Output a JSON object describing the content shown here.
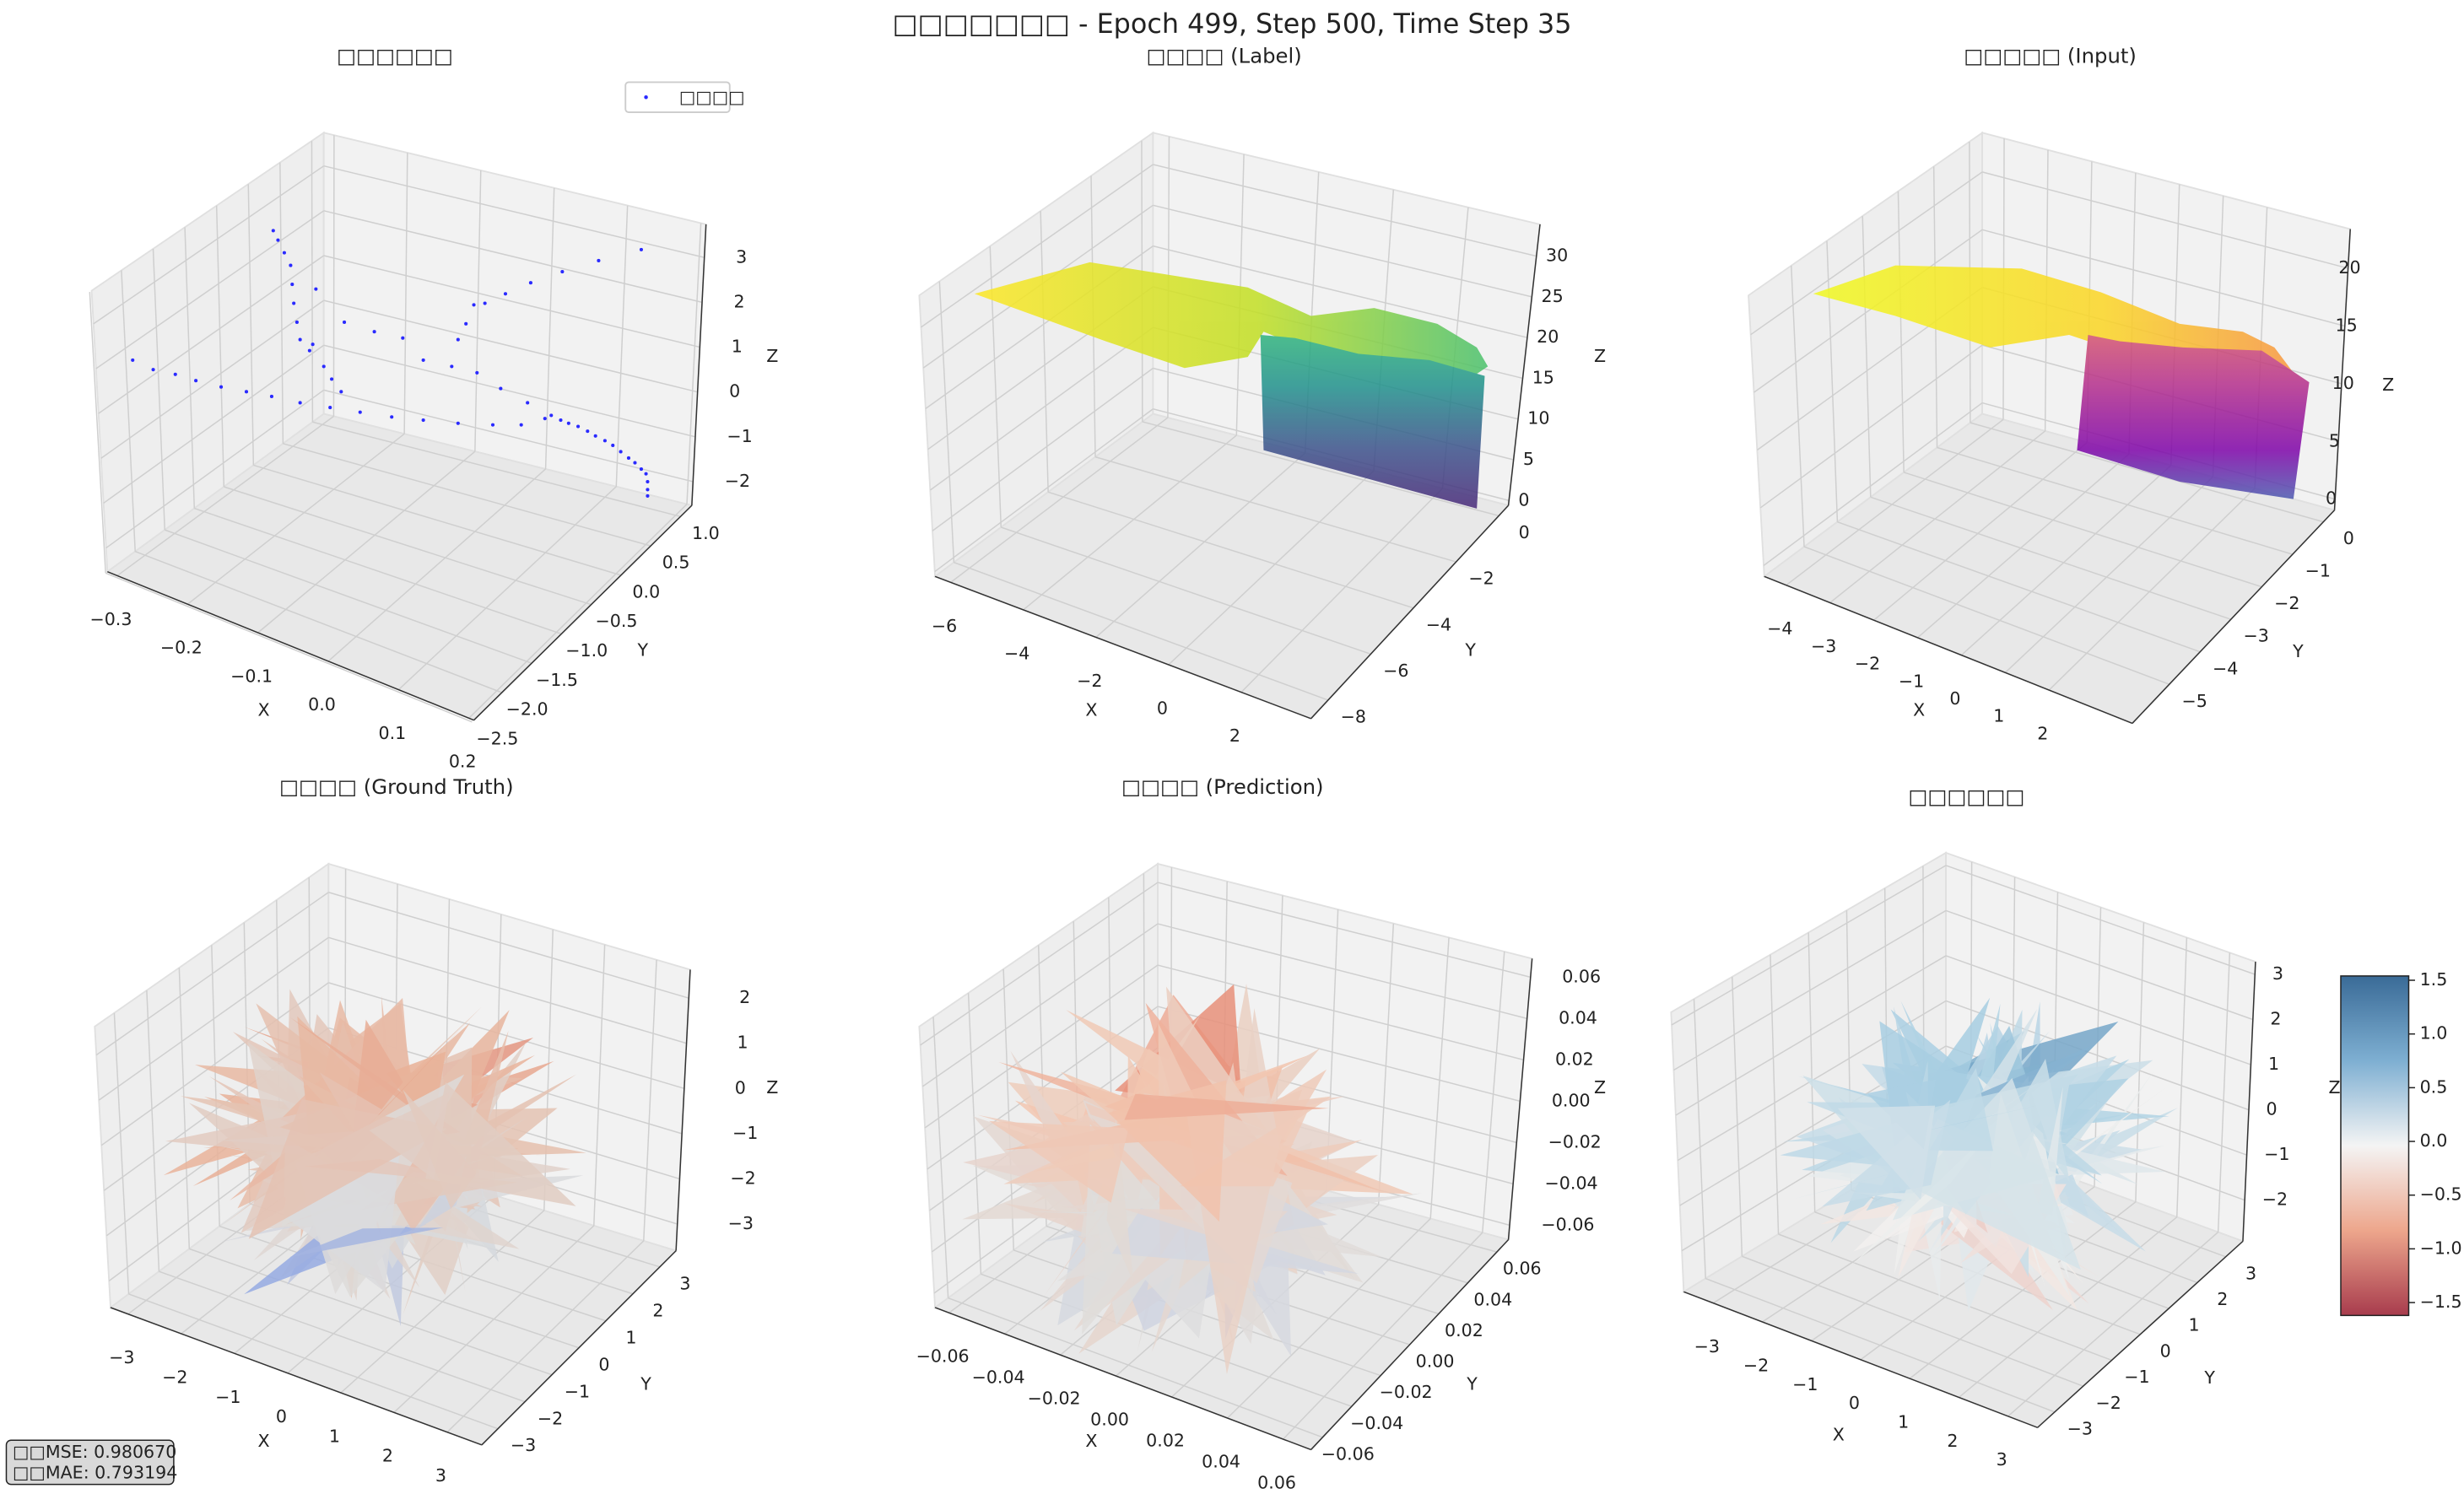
{
  "figure_title": "□□□□□□□ - Epoch 499, Step 500, Time Step 35",
  "metrics": [
    "□□MSE: 0.980670",
    "□□MAE: 0.793194"
  ],
  "chart_data": [
    {
      "type": "scatter3d",
      "title": "□□□□□□",
      "legend": "□□□□",
      "color": "#0000ff",
      "xlabel": "X",
      "ylabel": "Y",
      "zlabel": "Z",
      "xlim": [
        -0.314,
        0.207
      ],
      "ylim": [
        -2.47,
        1.19
      ],
      "zlim": [
        -2.53,
        3.74
      ],
      "xticks": [
        {
          "value": -0.3,
          "label": "−0.3"
        },
        {
          "value": -0.2,
          "label": "−0.2"
        },
        {
          "value": -0.1,
          "label": "−0.1"
        },
        {
          "value": 0,
          "label": "0.0"
        },
        0.1,
        0.2
      ],
      "yticks": [
        {
          "value": -2.5,
          "label": "−2.5"
        },
        {
          "value": -2,
          "label": "−2.0"
        },
        {
          "value": -1.5,
          "label": "−1.5"
        },
        {
          "value": -1,
          "label": "−1.0"
        },
        {
          "value": -0.5,
          "label": "−0.5"
        },
        {
          "value": 0,
          "label": "0.0"
        },
        0.5,
        {
          "value": 1,
          "label": "1.0"
        }
      ],
      "zticks": [
        {
          "value": -2,
          "label": "−2"
        },
        {
          "value": -1,
          "label": "−1"
        },
        0,
        1,
        2,
        3
      ]
    },
    {
      "type": "surface",
      "title": "□□□□ (Label)",
      "colormap": "viridis",
      "xlabel": "X",
      "ylabel": "Y",
      "zlabel": "Z",
      "xlim": [
        -6.43,
        3.92
      ],
      "ylim": [
        -8.8,
        0.45
      ],
      "zlim": [
        -0.6,
        33.9
      ],
      "xticks": [
        {
          "value": -6,
          "label": "−6"
        },
        {
          "value": -4,
          "label": "−4"
        },
        {
          "value": -2,
          "label": "−2"
        },
        0,
        2
      ],
      "yticks": [
        {
          "value": -8,
          "label": "−8"
        },
        {
          "value": -6,
          "label": "−6"
        },
        {
          "value": -4,
          "label": "−4"
        },
        {
          "value": -2,
          "label": "−2"
        },
        0
      ],
      "zticks": [
        0,
        5,
        10,
        15,
        20,
        25,
        30
      ]
    },
    {
      "type": "surface",
      "title": "□□□□□ (Input)",
      "colormap": "plasma",
      "xlabel": "X",
      "ylabel": "Y",
      "zlabel": "Z",
      "xlim": [
        -4.5,
        3.9
      ],
      "ylim": [
        -6.2,
        0.36
      ],
      "zlim": [
        -0.95,
        23.4
      ],
      "xticks": [
        {
          "value": -4,
          "label": "−4"
        },
        {
          "value": -3,
          "label": "−3"
        },
        {
          "value": -2,
          "label": "−2"
        },
        {
          "value": -1,
          "label": "−1"
        },
        0,
        1,
        2
      ],
      "yticks": [
        {
          "value": -5,
          "label": "−5"
        },
        {
          "value": -4,
          "label": "−4"
        },
        {
          "value": -3,
          "label": "−3"
        },
        {
          "value": -2,
          "label": "−2"
        },
        {
          "value": -1,
          "label": "−1"
        },
        0
      ],
      "zticks": [
        0,
        5,
        10,
        15,
        20
      ]
    },
    {
      "type": "trisurf",
      "title": "□□□□ (Ground Truth)",
      "colormap": "coolwarm",
      "xlabel": "X",
      "ylabel": "Y",
      "zlabel": "Z",
      "xlim": [
        -3.33,
        3.65
      ],
      "ylim": [
        -3.6,
        3.6
      ],
      "zlim": [
        -3.59,
        2.63
      ],
      "xticks": [
        {
          "value": -3,
          "label": "−3"
        },
        {
          "value": -2,
          "label": "−2"
        },
        {
          "value": -1,
          "label": "−1"
        },
        0,
        1,
        2,
        3
      ],
      "yticks": [
        {
          "value": -3,
          "label": "−3"
        },
        {
          "value": -2,
          "label": "−2"
        },
        {
          "value": -1,
          "label": "−1"
        },
        0,
        1,
        2,
        3
      ],
      "zticks": [
        {
          "value": -3,
          "label": "−3"
        },
        {
          "value": -2,
          "label": "−2"
        },
        {
          "value": -1,
          "label": "−1"
        },
        0,
        1,
        2
      ]
    },
    {
      "type": "trisurf",
      "title": "□□□□ (Prediction)",
      "colormap": "coolwarm",
      "xlabel": "X",
      "ylabel": "Y",
      "zlabel": "Z",
      "xlim": [
        -0.065,
        0.07
      ],
      "ylim": [
        -0.068,
        0.068
      ],
      "zlim": [
        -0.067,
        0.069
      ],
      "xticks": [
        {
          "value": -0.06,
          "label": "−0.06"
        },
        {
          "value": -0.04,
          "label": "−0.04"
        },
        {
          "value": -0.02,
          "label": "−0.02"
        },
        {
          "value": 0,
          "label": "0.00"
        },
        0.02,
        0.04,
        0.06
      ],
      "yticks": [
        {
          "value": -0.06,
          "label": "−0.06"
        },
        {
          "value": -0.04,
          "label": "−0.04"
        },
        {
          "value": -0.02,
          "label": "−0.02"
        },
        {
          "value": 0,
          "label": "0.00"
        },
        0.02,
        0.04,
        0.06
      ],
      "zticks": [
        {
          "value": -0.06,
          "label": "−0.06"
        },
        {
          "value": -0.04,
          "label": "−0.04"
        },
        {
          "value": -0.02,
          "label": "−0.02"
        },
        {
          "value": 0,
          "label": "0.00"
        },
        0.02,
        0.04,
        0.06
      ]
    },
    {
      "type": "trisurf",
      "title": "□□□□□□",
      "colormap": "RdBu",
      "xlabel": "X",
      "ylabel": "Y",
      "zlabel": "Z",
      "xlim": [
        -3.6,
        3.6
      ],
      "ylim": [
        -3.6,
        3.6
      ],
      "zlim": [
        -2.91,
        3.28
      ],
      "xticks": [
        {
          "value": -3,
          "label": "−3"
        },
        {
          "value": -2,
          "label": "−2"
        },
        {
          "value": -1,
          "label": "−1"
        },
        0,
        1,
        2,
        3
      ],
      "yticks": [
        {
          "value": -3,
          "label": "−3"
        },
        {
          "value": -2,
          "label": "−2"
        },
        {
          "value": -1,
          "label": "−1"
        },
        0,
        1,
        2,
        3
      ],
      "zticks": [
        {
          "value": -2,
          "label": "−2"
        },
        {
          "value": -1,
          "label": "−1"
        },
        0,
        1,
        2,
        3
      ],
      "colorbar": {
        "lim": [
          -1.62,
          1.54
        ],
        "ticks": [
          {
            "value": -1.5,
            "label": "−1.5"
          },
          {
            "value": -1,
            "label": "−1.0"
          },
          {
            "value": -0.5,
            "label": "−0.5"
          },
          {
            "value": 0,
            "label": "0.0"
          },
          0.5,
          {
            "value": 1,
            "label": "1.0"
          },
          1.5
        ]
      }
    }
  ]
}
